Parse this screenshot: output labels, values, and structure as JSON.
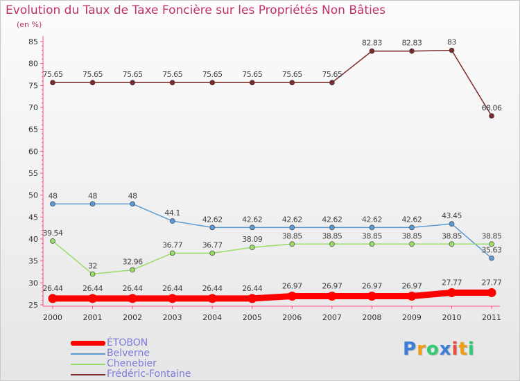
{
  "chart_data": {
    "type": "line",
    "title": "Evolution du Taux de Taxe Foncière sur les Propriétés Non Bâties",
    "subtitle": "(en %)",
    "categories": [
      "2000",
      "2001",
      "2002",
      "2003",
      "2004",
      "2005",
      "2006",
      "2007",
      "2008",
      "2009",
      "2010",
      "2011"
    ],
    "ylim": [
      25,
      85
    ],
    "yticks": [
      25,
      30,
      35,
      40,
      45,
      50,
      55,
      60,
      65,
      70,
      75,
      80,
      85
    ],
    "series": [
      {
        "name": "ÉTOBON",
        "color": "#ff0000",
        "values": [
          26.44,
          26.44,
          26.44,
          26.44,
          26.44,
          26.44,
          26.97,
          26.97,
          26.97,
          26.97,
          27.77,
          27.77
        ],
        "labels": [
          "26.44",
          "26.44",
          "26.44",
          "26.44",
          "26.44",
          "26.44",
          "26.97",
          "26.97",
          "26.97",
          "26.97",
          "27.77",
          "27.77"
        ]
      },
      {
        "name": "Belverne",
        "color": "#5b9bd5",
        "values": [
          48,
          48,
          48,
          44.1,
          42.62,
          42.62,
          42.62,
          42.62,
          42.62,
          42.62,
          43.45,
          35.63
        ],
        "labels": [
          "48",
          "48",
          "48",
          "44.1",
          "42.62",
          "42.62",
          "42.62",
          "42.62",
          "42.62",
          "42.62",
          "43.45",
          "35.63"
        ]
      },
      {
        "name": "Chenebier",
        "color": "#99dd66",
        "values": [
          39.54,
          32,
          32.96,
          36.77,
          36.77,
          38.09,
          38.85,
          38.85,
          38.85,
          38.85,
          38.85,
          38.85
        ],
        "labels": [
          "39.54",
          "32",
          "32.96",
          "36.77",
          "36.77",
          "38.09",
          "38.85",
          "38.85",
          "38.85",
          "38.85",
          "38.85",
          "38.85"
        ]
      },
      {
        "name": "Frédéric-Fontaine",
        "color": "#7a2a2a",
        "values": [
          75.65,
          75.65,
          75.65,
          75.65,
          75.65,
          75.65,
          75.65,
          75.65,
          82.83,
          82.83,
          83,
          68.06
        ],
        "labels": [
          "75.65",
          "75.65",
          "75.65",
          "75.65",
          "75.65",
          "75.65",
          "75.65",
          "75.65",
          "82.83",
          "82.83",
          "83",
          "68.06"
        ]
      }
    ],
    "legend_position": "bottom-left",
    "grid": false
  },
  "logo": {
    "letters": [
      "P",
      "r",
      "o",
      "x",
      "i",
      "t",
      "i"
    ],
    "colors": [
      "#3d7fd8",
      "#f39c12",
      "#2ecc71",
      "#3d7fd8",
      "#e74c3c",
      "#f39c12",
      "#2ecc71"
    ]
  }
}
